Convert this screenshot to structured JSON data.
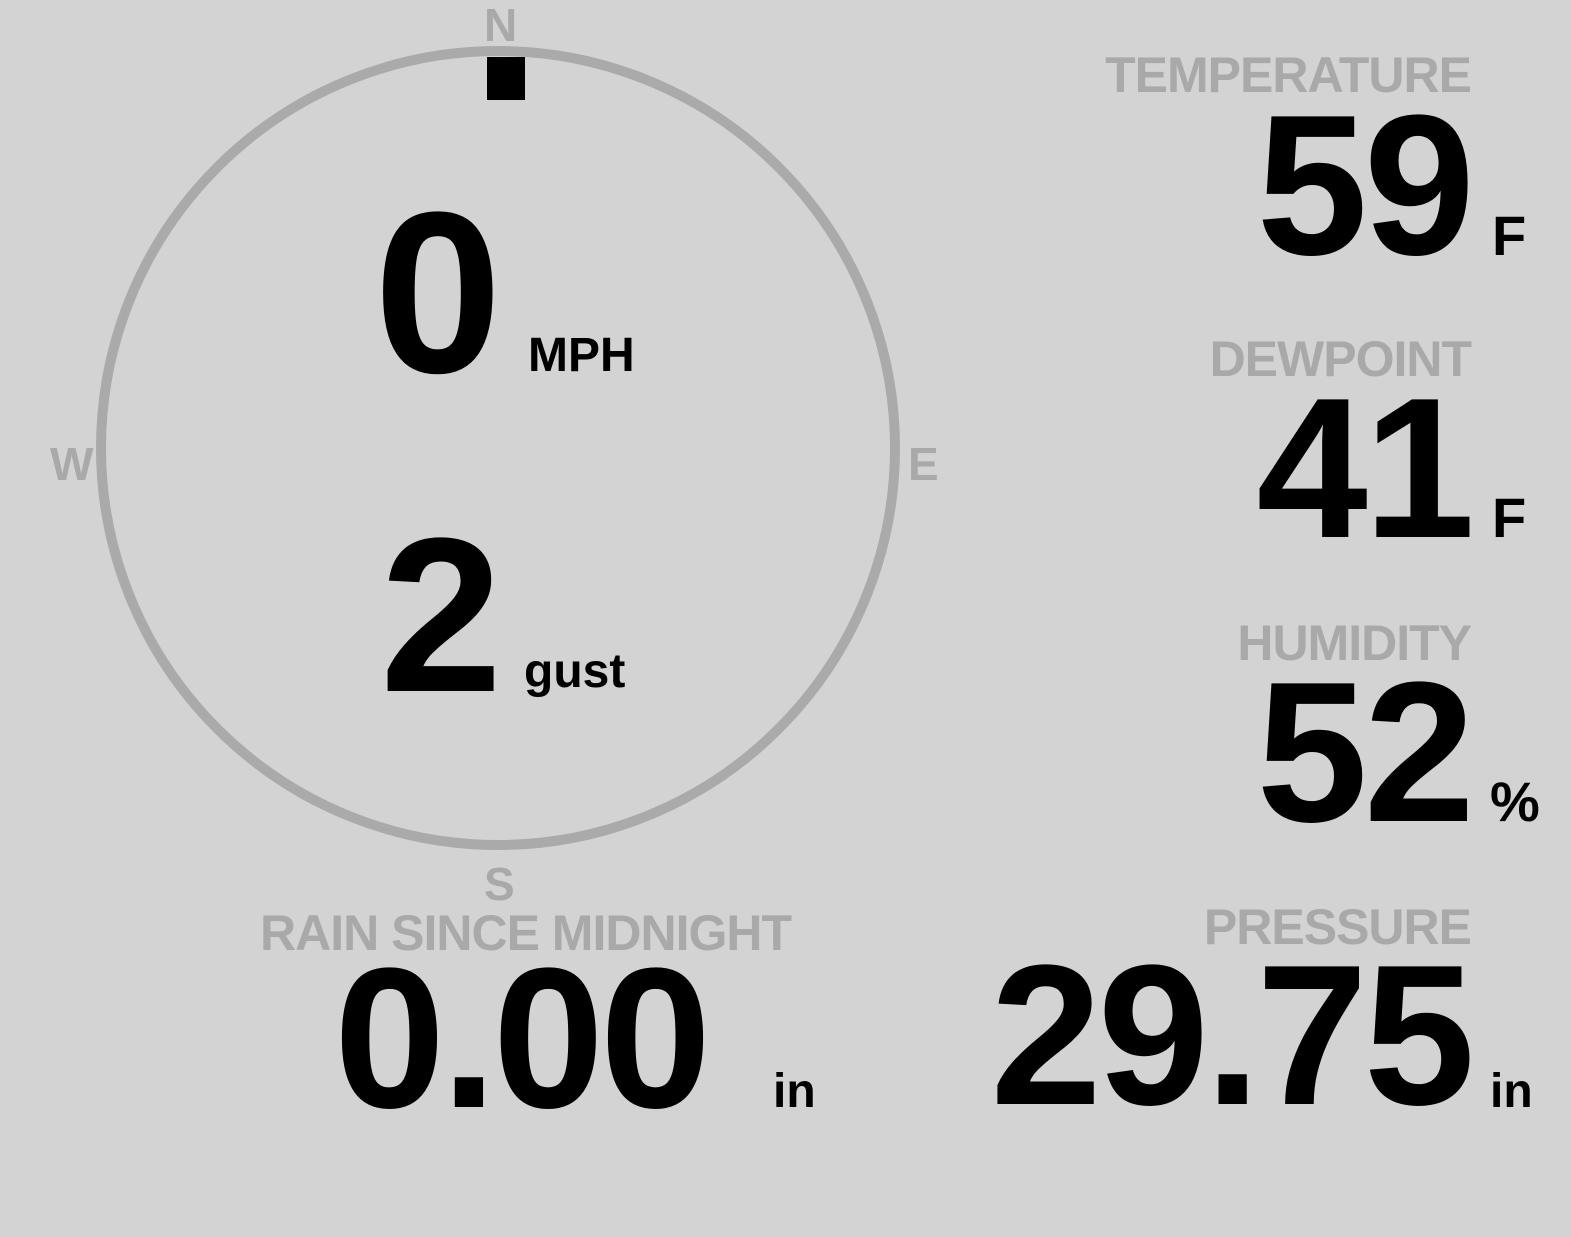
{
  "colors": {
    "background": "#d3d3d3",
    "label": "#a9a9a9",
    "value": "#000000",
    "dial": "#aaaaaa"
  },
  "wind": {
    "compass": {
      "n": "N",
      "e": "E",
      "s": "S",
      "w": "W"
    },
    "direction_deg": 0,
    "speed": "0",
    "speed_unit": "MPH",
    "gust": "2",
    "gust_label": "gust"
  },
  "temperature": {
    "label": "TEMPERATURE",
    "value": "59",
    "unit": "F"
  },
  "dewpoint": {
    "label": "DEWPOINT",
    "value": "41",
    "unit": "F"
  },
  "humidity": {
    "label": "HUMIDITY",
    "value": "52",
    "unit": "%"
  },
  "pressure": {
    "label": "PRESSURE",
    "value": "29.75",
    "unit": "in"
  },
  "rain": {
    "label": "RAIN SINCE MIDNIGHT",
    "value": "0.00",
    "unit": "in"
  }
}
